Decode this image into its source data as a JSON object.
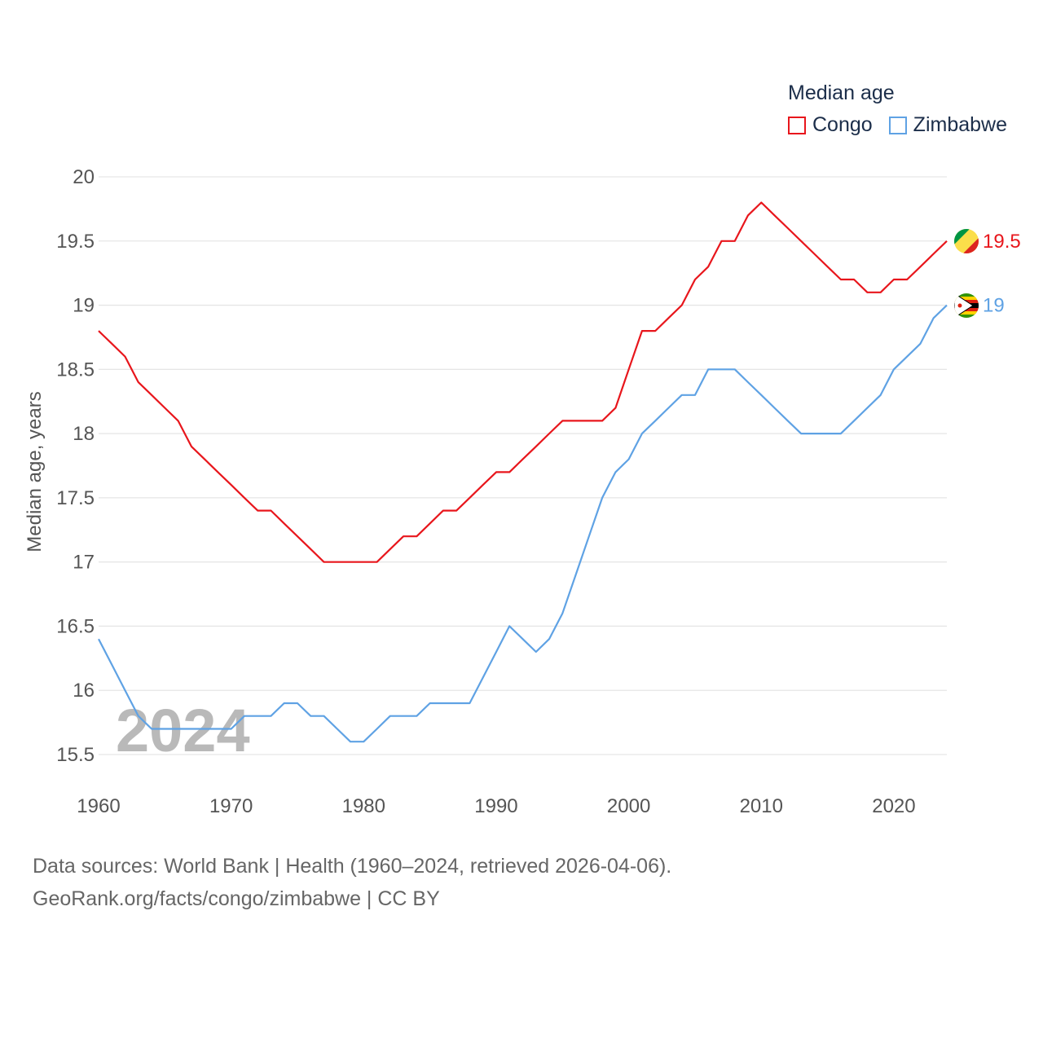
{
  "legend": {
    "title": "Median age",
    "items": [
      {
        "label": "Congo",
        "color": "#e8161c"
      },
      {
        "label": "Zimbabwe",
        "color": "#5fa2e4"
      }
    ]
  },
  "year_watermark": "2024",
  "footer": {
    "line1": "Data sources: World Bank | Health (1960–2024, retrieved 2026-04-06).",
    "line2": "GeoRank.org/facts/congo/zimbabwe | CC BY"
  },
  "chart_data": {
    "type": "line",
    "title": "Median age",
    "xlabel": "",
    "ylabel": "Median age, years",
    "xlim": [
      1960,
      2024
    ],
    "ylim": [
      15.5,
      20
    ],
    "xticks": [
      1960,
      1970,
      1980,
      1990,
      2000,
      2010,
      2020
    ],
    "yticks": [
      15.5,
      16,
      16.5,
      17,
      17.5,
      18,
      18.5,
      19,
      19.5,
      20
    ],
    "ytick_labels": [
      "15.5",
      "16",
      "16.5",
      "17",
      "17.5",
      "18",
      "18.5",
      "19",
      "19.5",
      "20"
    ],
    "grid": true,
    "x": [
      1960,
      1961,
      1962,
      1963,
      1964,
      1965,
      1966,
      1967,
      1968,
      1969,
      1970,
      1971,
      1972,
      1973,
      1974,
      1975,
      1976,
      1977,
      1978,
      1979,
      1980,
      1981,
      1982,
      1983,
      1984,
      1985,
      1986,
      1987,
      1988,
      1989,
      1990,
      1991,
      1992,
      1993,
      1994,
      1995,
      1996,
      1997,
      1998,
      1999,
      2000,
      2001,
      2002,
      2003,
      2004,
      2005,
      2006,
      2007,
      2008,
      2009,
      2010,
      2011,
      2012,
      2013,
      2014,
      2015,
      2016,
      2017,
      2018,
      2019,
      2020,
      2021,
      2022,
      2023,
      2024
    ],
    "series": [
      {
        "name": "Congo",
        "color": "#e8161c",
        "end_label": "19.5",
        "values": [
          18.8,
          18.7,
          18.6,
          18.4,
          18.3,
          18.2,
          18.1,
          17.9,
          17.8,
          17.7,
          17.6,
          17.5,
          17.4,
          17.4,
          17.3,
          17.2,
          17.1,
          17.0,
          17.0,
          17.0,
          17.0,
          17.0,
          17.1,
          17.2,
          17.2,
          17.3,
          17.4,
          17.4,
          17.5,
          17.6,
          17.7,
          17.7,
          17.8,
          17.9,
          18.0,
          18.1,
          18.1,
          18.1,
          18.1,
          18.2,
          18.5,
          18.8,
          18.8,
          18.9,
          19.0,
          19.2,
          19.3,
          19.5,
          19.5,
          19.7,
          19.8,
          19.7,
          19.6,
          19.5,
          19.4,
          19.3,
          19.2,
          19.2,
          19.1,
          19.1,
          19.2,
          19.2,
          19.3,
          19.4,
          19.5
        ]
      },
      {
        "name": "Zimbabwe",
        "color": "#5fa2e4",
        "end_label": "19",
        "values": [
          16.4,
          16.2,
          16.0,
          15.8,
          15.7,
          15.7,
          15.7,
          15.7,
          15.7,
          15.7,
          15.7,
          15.8,
          15.8,
          15.8,
          15.9,
          15.9,
          15.8,
          15.8,
          15.7,
          15.6,
          15.6,
          15.7,
          15.8,
          15.8,
          15.8,
          15.9,
          15.9,
          15.9,
          15.9,
          16.1,
          16.3,
          16.5,
          16.4,
          16.3,
          16.4,
          16.6,
          16.9,
          17.2,
          17.5,
          17.7,
          17.8,
          18.0,
          18.1,
          18.2,
          18.3,
          18.3,
          18.5,
          18.5,
          18.5,
          18.4,
          18.3,
          18.2,
          18.1,
          18.0,
          18.0,
          18.0,
          18.0,
          18.1,
          18.2,
          18.3,
          18.5,
          18.6,
          18.7,
          18.9,
          19.0
        ]
      }
    ]
  }
}
